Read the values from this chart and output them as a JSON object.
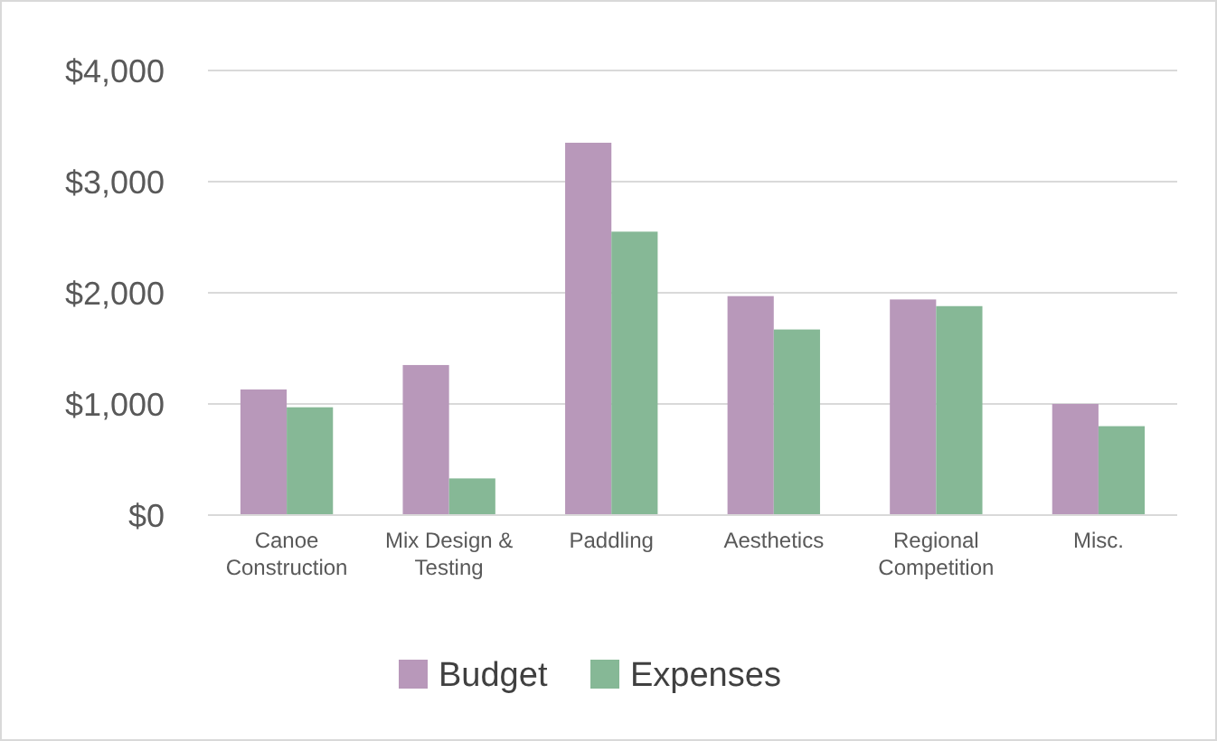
{
  "chart_data": {
    "type": "bar",
    "categories": [
      "Canoe Construction",
      "Mix Design & Testing",
      "Paddling",
      "Aesthetics",
      "Regional Competition",
      "Misc."
    ],
    "series": [
      {
        "name": "Budget",
        "color": "#b898ba",
        "values": [
          1130,
          1350,
          3350,
          1970,
          1940,
          1000
        ]
      },
      {
        "name": "Expenses",
        "color": "#86b896",
        "values": [
          970,
          330,
          2550,
          1670,
          1880,
          800
        ]
      }
    ],
    "ylim": [
      0,
      4000
    ],
    "yticks": [
      {
        "value": 0,
        "label": "$0"
      },
      {
        "value": 1000,
        "label": "$1,000"
      },
      {
        "value": 2000,
        "label": "$2,000"
      },
      {
        "value": 3000,
        "label": "$3,000"
      },
      {
        "value": 4000,
        "label": "$4,000"
      }
    ],
    "grid": "y",
    "legend": "bottom"
  }
}
